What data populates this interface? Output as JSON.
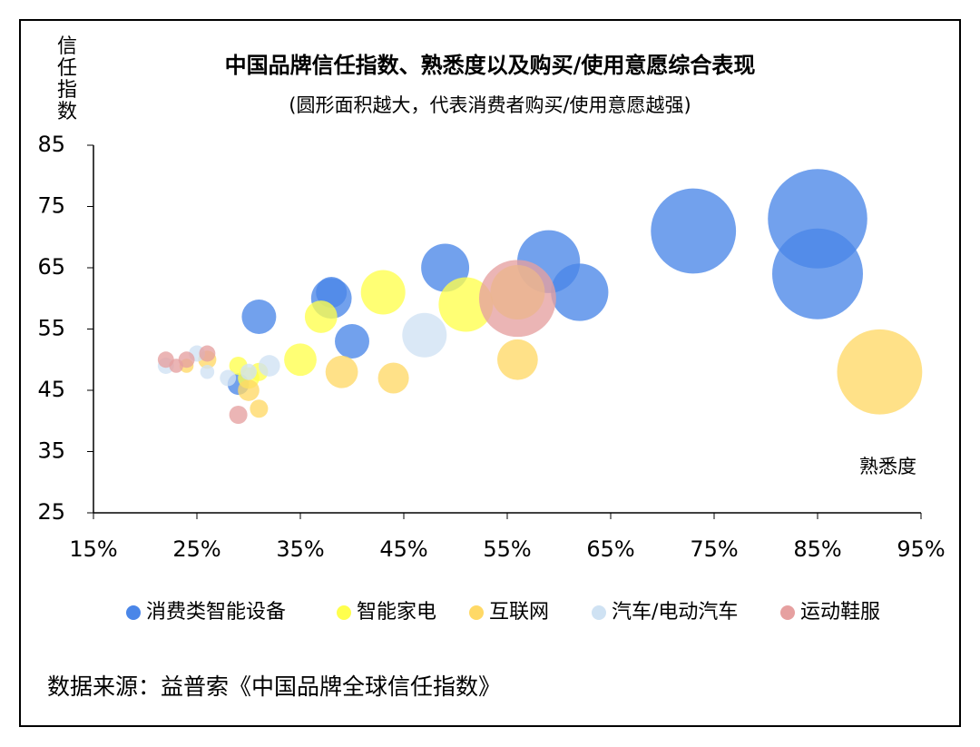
{
  "chart_data": {
    "type": "bubble",
    "title": "中国品牌信任指数、熟悉度以及购买/使用意愿综合表现",
    "subtitle": "(圆形面积越大，代表消费者购买/使用意愿越强)",
    "y_label": "信任指数",
    "x_label": "熟悉度",
    "source": "数据来源：益普索《中国品牌全球信任指数》",
    "xlim": [
      15,
      95
    ],
    "xticks": [
      {
        "value": 15,
        "label": "15%"
      },
      {
        "value": 25,
        "label": "25%"
      },
      {
        "value": 35,
        "label": "35%"
      },
      {
        "value": 45,
        "label": "45%"
      },
      {
        "value": 55,
        "label": "55%"
      },
      {
        "value": 65,
        "label": "65%"
      },
      {
        "value": 75,
        "label": "75%"
      },
      {
        "value": 85,
        "label": "85%"
      },
      {
        "value": 95,
        "label": "95%"
      }
    ],
    "ylim": [
      25,
      85
    ],
    "yticks": [
      25,
      35,
      45,
      55,
      65,
      75,
      85
    ],
    "grid": false,
    "legend": "bottom",
    "series": [
      {
        "name": "消费类智能设备",
        "color": "#4a86e8",
        "x": [
          85,
          85,
          73,
          59,
          62,
          49,
          38,
          38,
          31,
          40,
          29
        ],
        "values": [
          73,
          64,
          71,
          66,
          61,
          65,
          60,
          61,
          57,
          53,
          46
        ],
        "size": [
          30,
          25,
          22,
          12,
          10,
          7,
          5,
          2.9,
          3.6,
          3.6,
          1.4
        ]
      },
      {
        "name": "智能家电",
        "color": "#ffff4d",
        "x": [
          43,
          51,
          37,
          35,
          56,
          30,
          29,
          31
        ],
        "values": [
          61,
          59,
          57,
          50,
          61,
          47,
          49,
          48
        ],
        "size": [
          6,
          9,
          3.2,
          3.2,
          9,
          1.4,
          1,
          1
        ]
      },
      {
        "name": "互联网",
        "color": "#ffd966",
        "x": [
          91,
          56,
          39,
          44,
          30,
          31,
          26,
          24
        ],
        "values": [
          48,
          50,
          48,
          47,
          45,
          42,
          50,
          49
        ],
        "size": [
          22,
          5,
          3.2,
          2.9,
          1.4,
          1,
          1,
          0.6
        ]
      },
      {
        "name": "汽车/电动汽车",
        "color": "#cfe2f3",
        "x": [
          47,
          32,
          22,
          25,
          26,
          28,
          30
        ],
        "values": [
          54,
          49,
          49,
          51,
          48,
          47,
          48
        ],
        "size": [
          6,
          1.4,
          0.8,
          0.8,
          0.6,
          0.8,
          0.8
        ]
      },
      {
        "name": "运动鞋服",
        "color": "#e6a0a0",
        "x": [
          56,
          22,
          24,
          26,
          29,
          23
        ],
        "values": [
          60,
          50,
          50,
          51,
          41,
          49
        ],
        "size": [
          18,
          0.8,
          0.8,
          0.8,
          1,
          0.6
        ]
      }
    ]
  }
}
